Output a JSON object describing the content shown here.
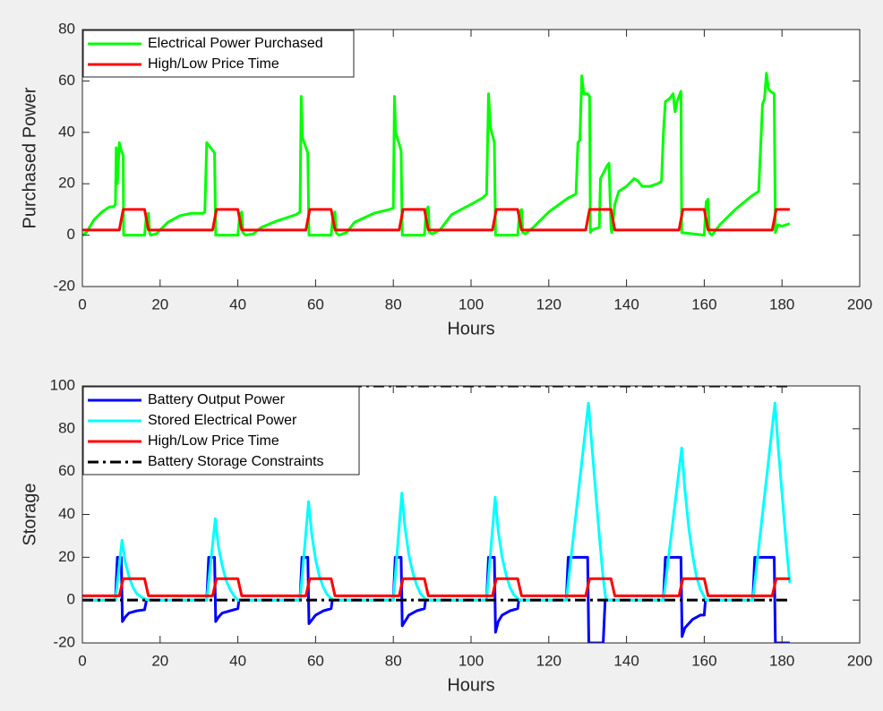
{
  "chart_data": [
    {
      "type": "line",
      "xlabel": "Hours",
      "ylabel": "Purchased Power",
      "xlim": [
        0,
        200
      ],
      "ylim": [
        -20,
        80
      ],
      "xticks": [
        0,
        20,
        40,
        60,
        80,
        100,
        120,
        140,
        160,
        180,
        200
      ],
      "yticks": [
        -20,
        0,
        20,
        40,
        60,
        80
      ],
      "legend": "upper left",
      "series": [
        {
          "name": "Electrical Power Purchased",
          "color": "#00ff00",
          "x": [
            0,
            1,
            3,
            5,
            7,
            8,
            8.5,
            8.7,
            9,
            9.5,
            10,
            10.5,
            10.6,
            16,
            16.5,
            17,
            17.3,
            17.5,
            19,
            20,
            22,
            25,
            28,
            31,
            31.5,
            32,
            34,
            34.3,
            40,
            40.5,
            41,
            41.3,
            42,
            44,
            46,
            50,
            55,
            56,
            56.3,
            56.6,
            58,
            58.3,
            64,
            64.5,
            65,
            65.3,
            66,
            68,
            70,
            75,
            79,
            80,
            80.3,
            80.6,
            82,
            82.3,
            88,
            88.5,
            89,
            89.3,
            90,
            92,
            95,
            100,
            103,
            104,
            104.5,
            105,
            106,
            106.3,
            112,
            112.5,
            113,
            113.3,
            114,
            116,
            120,
            125,
            127,
            127.5,
            128,
            128.5,
            129,
            130,
            130.5,
            130.7,
            131,
            133,
            133.3,
            134,
            135,
            135.5,
            136,
            136.2,
            137,
            138,
            140,
            142,
            143,
            144,
            146,
            148,
            149,
            149.5,
            150,
            151,
            152,
            152.5,
            153,
            154,
            154.2,
            160,
            160.5,
            161,
            161.3,
            162,
            164,
            168,
            172,
            174,
            175,
            175.5,
            176,
            176.5,
            177,
            178,
            178.3,
            179,
            180,
            181,
            182
          ],
          "values": [
            0,
            1,
            6,
            9,
            11,
            11,
            12,
            34,
            20,
            36,
            33,
            31,
            0,
            0,
            8,
            8.5,
            1,
            0,
            0.5,
            2,
            5,
            7.5,
            8.5,
            8.5,
            9,
            36,
            32,
            0,
            0,
            8,
            9,
            1,
            0,
            0.5,
            3,
            5.5,
            8,
            9,
            54,
            38,
            32,
            0,
            0,
            8,
            9,
            1,
            0,
            1,
            5,
            8.5,
            10,
            10.5,
            54,
            40,
            33,
            0,
            0,
            10,
            11,
            1,
            0.5,
            2,
            8,
            12,
            14.5,
            16,
            55,
            42,
            36,
            0,
            0,
            9,
            10,
            1,
            0.5,
            3,
            9,
            14.5,
            16,
            36,
            37,
            62,
            55,
            55,
            54,
            1,
            2,
            3,
            22,
            24,
            27,
            28,
            3,
            1,
            12,
            17,
            19,
            22,
            21,
            19,
            19,
            20,
            21,
            40,
            52,
            53,
            55,
            48,
            52,
            56,
            1,
            0,
            13,
            14,
            1,
            0,
            4,
            10,
            15,
            17,
            51,
            53,
            63,
            57,
            56,
            55,
            1,
            4,
            3.5,
            4,
            4.5
          ]
        },
        {
          "name": "High/Low Price Time",
          "color": "#ff0000",
          "x": [
            0,
            9.5,
            10.5,
            16,
            17,
            33.5,
            34.5,
            40,
            41,
            57.5,
            58.5,
            64,
            65,
            81.5,
            82.5,
            88,
            89,
            105.5,
            106.5,
            112,
            113,
            129.5,
            130.5,
            136,
            137,
            153.5,
            154.5,
            160,
            161,
            177.5,
            178.5,
            182
          ],
          "values": [
            2,
            2,
            10,
            10,
            2,
            2,
            10,
            10,
            2,
            2,
            10,
            10,
            2,
            2,
            10,
            10,
            2,
            2,
            10,
            10,
            2,
            2,
            10,
            10,
            2,
            2,
            10,
            10,
            2,
            2,
            10,
            10
          ]
        }
      ]
    },
    {
      "type": "line",
      "xlabel": "Hours",
      "ylabel": "Storage",
      "xlim": [
        0,
        200
      ],
      "ylim": [
        -20,
        100
      ],
      "xticks": [
        0,
        20,
        40,
        60,
        80,
        100,
        120,
        140,
        160,
        180,
        200
      ],
      "yticks": [
        -20,
        0,
        20,
        40,
        60,
        80,
        100
      ],
      "legend": "upper left",
      "series": [
        {
          "name": "Battery Output Power",
          "color": "#0000ff",
          "x": [
            0,
            8.5,
            9,
            10,
            10.3,
            11,
            12,
            14,
            16,
            16.5,
            32,
            32.5,
            34,
            34.3,
            35,
            36,
            38,
            40,
            40.3,
            56,
            56.5,
            58,
            58.3,
            60,
            62,
            64,
            64.3,
            80,
            80.5,
            82,
            82.3,
            84,
            86,
            88,
            88.3,
            104,
            104.5,
            106,
            106.3,
            107,
            108,
            110,
            112,
            112.3,
            124.5,
            125,
            130,
            130.3,
            134,
            134.5,
            149.5,
            150,
            154,
            154.3,
            155,
            157,
            159,
            160,
            160.3,
            172.5,
            173,
            178,
            178.3,
            182
          ],
          "values": [
            0,
            0,
            20,
            20,
            -10,
            -8,
            -6,
            -5,
            -4.5,
            0,
            0,
            20,
            20,
            -10,
            -8,
            -6,
            -5,
            -4,
            0,
            0,
            20,
            20,
            -11,
            -7,
            -5,
            -4,
            0,
            0,
            20,
            20,
            -12,
            -7,
            -5,
            -4,
            0,
            0,
            20,
            20,
            -15,
            -10,
            -7,
            -5,
            -4,
            0,
            0,
            20,
            20,
            -20,
            -20,
            0,
            0,
            20,
            20,
            -17,
            -13,
            -9,
            -7,
            -7,
            0,
            0,
            20,
            20,
            -20,
            -20
          ]
        },
        {
          "name": "Stored Electrical Power",
          "color": "#00ffff",
          "x": [
            0,
            8.5,
            10.2,
            11,
            12,
            13,
            14,
            15.5,
            17,
            32,
            34.2,
            35,
            36,
            37,
            38,
            39,
            40,
            56,
            58.2,
            59,
            60,
            61,
            62,
            63,
            64.5,
            80,
            82.2,
            83,
            84,
            85,
            86,
            87,
            88.5,
            104,
            106.2,
            107,
            108,
            109,
            110,
            111,
            112.5,
            124.5,
            130.2,
            131,
            132,
            133,
            134,
            134.7,
            149.5,
            154.2,
            155,
            156,
            157,
            158,
            159,
            160.5,
            172.5,
            178.2,
            179,
            180,
            181,
            182
          ],
          "values": [
            0,
            0,
            28,
            18,
            11,
            6,
            3,
            1,
            0,
            0,
            38,
            25,
            16,
            9,
            5,
            2,
            0,
            0,
            46,
            31,
            19,
            11,
            6,
            2.5,
            0,
            0,
            50,
            34,
            21,
            13,
            7,
            3,
            0,
            0,
            48,
            32,
            20,
            12,
            6,
            2.5,
            0,
            0,
            92,
            74,
            52,
            30,
            10,
            0,
            0,
            71,
            52,
            34,
            21,
            11,
            5,
            0,
            0,
            92,
            72,
            50,
            28,
            8
          ]
        },
        {
          "name": "High/Low Price Time",
          "color": "#ff0000",
          "x": [
            0,
            9.5,
            10.5,
            16,
            17,
            33.5,
            34.5,
            40,
            41,
            57.5,
            58.5,
            64,
            65,
            81.5,
            82.5,
            88,
            89,
            105.5,
            106.5,
            112,
            113,
            129.5,
            130.5,
            136,
            137,
            153.5,
            154.5,
            160,
            161,
            177.5,
            178.5,
            182
          ],
          "values": [
            2,
            2,
            10,
            10,
            2,
            2,
            10,
            10,
            2,
            2,
            10,
            10,
            2,
            2,
            10,
            10,
            2,
            2,
            10,
            10,
            2,
            2,
            10,
            10,
            2,
            2,
            10,
            10,
            2,
            2,
            10,
            10
          ]
        },
        {
          "name": "Battery Storage Constraints",
          "color": "#000000",
          "line_style": "dashdot",
          "x": [
            0,
            182,
            null,
            0,
            182
          ],
          "values": [
            0,
            0,
            null,
            100,
            100
          ]
        }
      ]
    }
  ]
}
